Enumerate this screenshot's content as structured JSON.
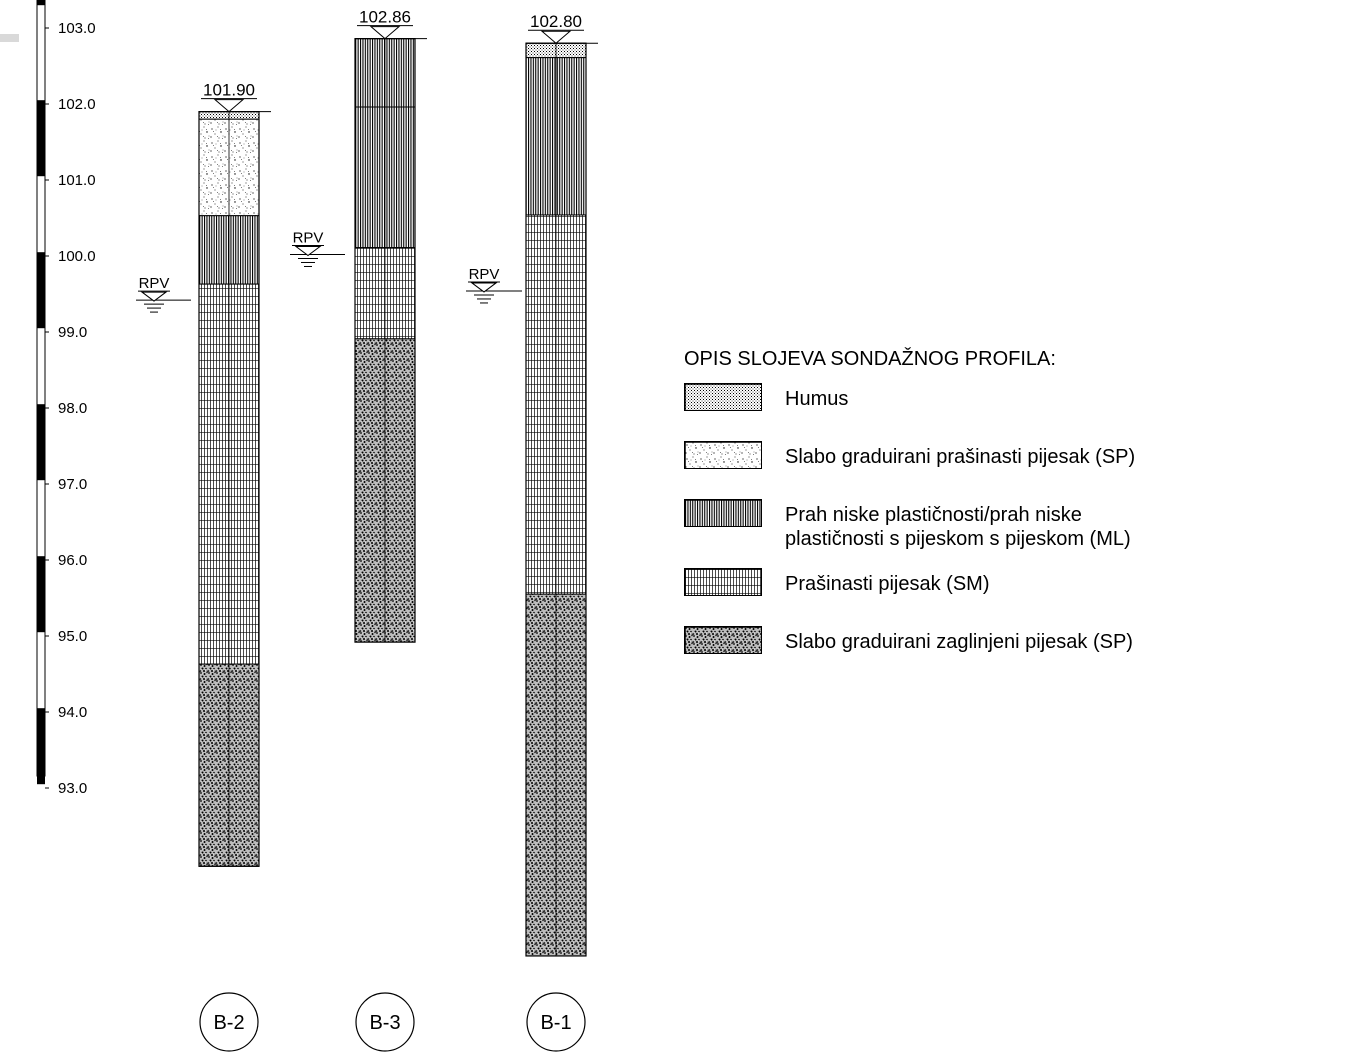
{
  "elevation_scale": {
    "ticks": [
      "103.0",
      "102.0",
      "101.0",
      "100.0",
      "99.0",
      "98.0",
      "97.0",
      "96.0",
      "95.0",
      "94.0",
      "93.0"
    ],
    "top_m": 103.47,
    "bottom_m": 92.0,
    "band_m": 1.0
  },
  "water_label": "RPV",
  "boreholes": [
    {
      "id": "B-2",
      "top_label": "101.90",
      "top_m": 101.9,
      "water_m": 99.42,
      "layers": [
        {
          "type": "humus",
          "from_m": 101.9,
          "to_m": 101.8
        },
        {
          "type": "sp_silty",
          "from_m": 101.8,
          "to_m": 100.53
        },
        {
          "type": "ml",
          "from_m": 100.53,
          "to_m": 99.63
        },
        {
          "type": "sm",
          "from_m": 99.63,
          "to_m": 94.63
        },
        {
          "type": "sp_clayey",
          "from_m": 94.63,
          "to_m": 91.97
        }
      ]
    },
    {
      "id": "B-3",
      "top_label": "102.86",
      "top_m": 102.86,
      "water_m": 100.02,
      "layers": [
        {
          "type": "ml",
          "from_m": 102.86,
          "to_m": 100.11
        },
        {
          "type": "ml_sep",
          "from_m": 101.96,
          "to_m": 101.96
        },
        {
          "type": "sm",
          "from_m": 100.11,
          "to_m": 98.91
        },
        {
          "type": "sp_clayey",
          "from_m": 98.91,
          "to_m": 94.92
        }
      ]
    },
    {
      "id": "B-1",
      "top_label": "102.80",
      "top_m": 102.8,
      "water_m": 99.54,
      "layers": [
        {
          "type": "humus",
          "from_m": 102.8,
          "to_m": 102.61
        },
        {
          "type": "ml",
          "from_m": 102.61,
          "to_m": 100.54
        },
        {
          "type": "sm",
          "from_m": 100.54,
          "to_m": 95.55
        },
        {
          "type": "sp_clayey",
          "from_m": 95.55,
          "to_m": 90.79
        }
      ]
    }
  ],
  "legend": {
    "title": "OPIS SLOJEVA SONDAŽNOG PROFILA:",
    "items": [
      {
        "type": "humus",
        "label": "Humus"
      },
      {
        "type": "sp_silty",
        "label": "Slabo graduirani prašinasti pijesak (SP)"
      },
      {
        "type": "ml",
        "label": "Prah niske plastičnosti/prah niske\nplastičnosti s pijeskom s pijeskom (ML)"
      },
      {
        "type": "sm",
        "label": "Prašinasti pijesak (SM)"
      },
      {
        "type": "sp_clayey",
        "label": "Slabo graduirani zaglinjeni pijesak (SP)"
      }
    ]
  }
}
